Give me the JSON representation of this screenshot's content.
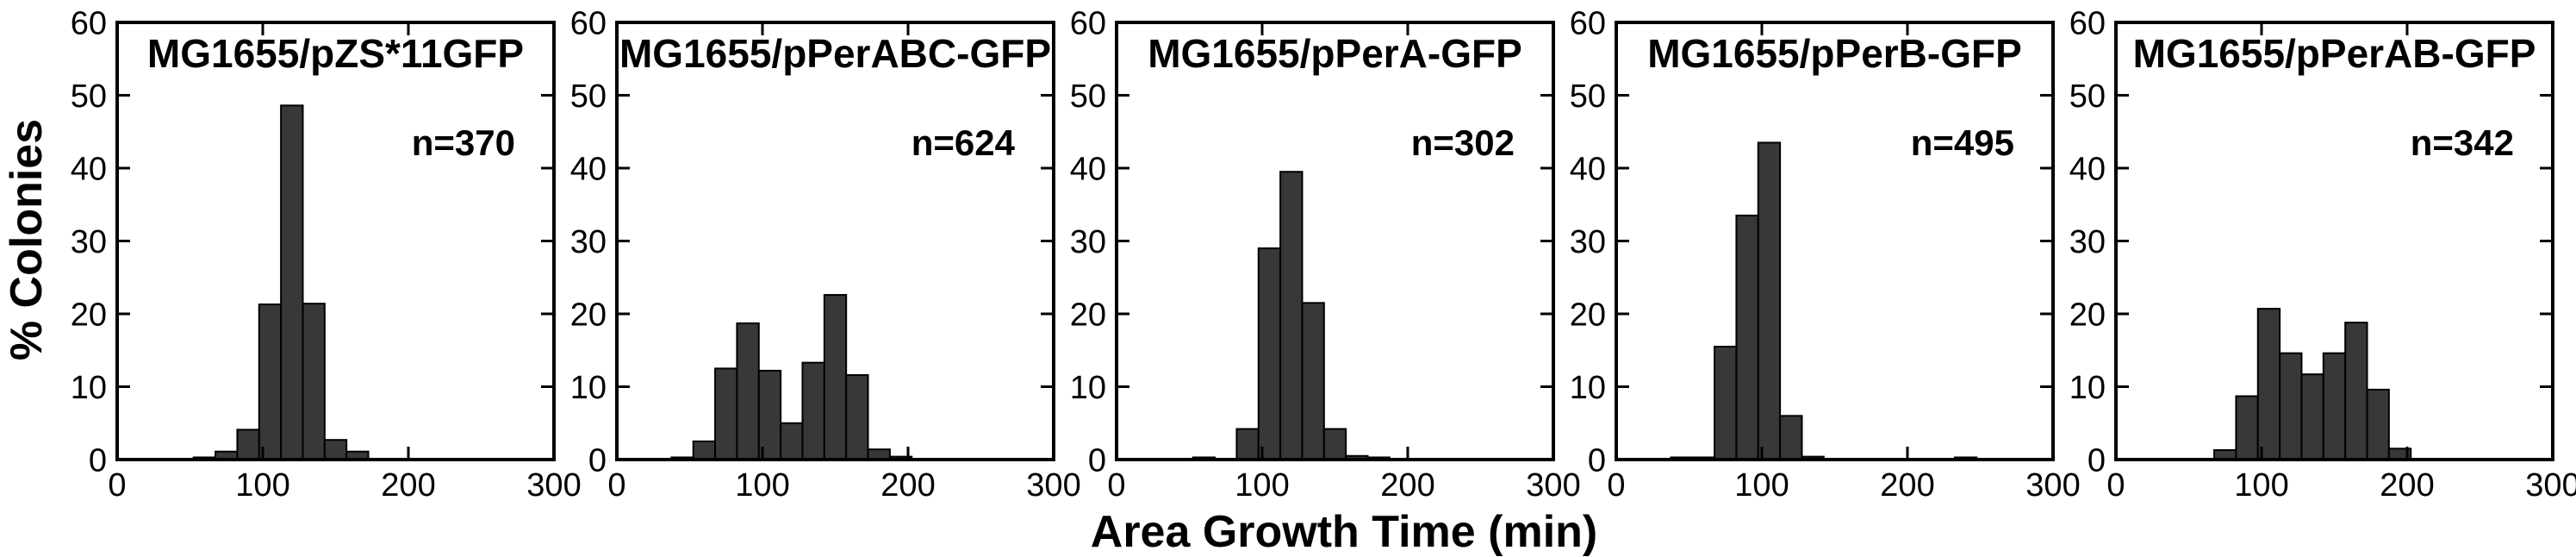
{
  "figure": {
    "y_axis_label": "% Colonies",
    "x_axis_label": "Area Growth Time (min)",
    "background_color": "#ffffff",
    "axis_color": "#000000",
    "bar_fill_color": "#383838",
    "bar_edge_color": "#000000"
  },
  "chart_data": [
    {
      "type": "bar",
      "title": "MG1655/pZS*11GFP",
      "n_label": "n=370",
      "n_value": 370,
      "xlabel": "Area Growth Time (min)",
      "ylabel": "% Colonies",
      "xlim": [
        0,
        300
      ],
      "ylim": [
        0,
        60
      ],
      "xticks": [
        0,
        100,
        200,
        300
      ],
      "yticks": [
        0,
        10,
        20,
        30,
        40,
        50,
        60
      ],
      "bin_width": 15,
      "bin_centers": [
        60,
        75,
        90,
        105,
        120,
        135,
        150,
        165
      ],
      "values": [
        0.3,
        1.1,
        4.1,
        21.3,
        48.6,
        21.4,
        2.7,
        1.1
      ]
    },
    {
      "type": "bar",
      "title": "MG1655/pPerABC-GFP",
      "n_label": "n=624",
      "n_value": 624,
      "xlabel": "Area Growth Time (min)",
      "ylabel": "% Colonies",
      "xlim": [
        0,
        300
      ],
      "ylim": [
        0,
        60
      ],
      "xticks": [
        0,
        100,
        200,
        300
      ],
      "yticks": [
        0,
        10,
        20,
        30,
        40,
        50,
        60
      ],
      "bin_width": 15,
      "bin_centers": [
        45,
        60,
        75,
        90,
        105,
        120,
        135,
        150,
        165,
        180,
        195
      ],
      "values": [
        0.3,
        2.5,
        12.5,
        18.7,
        12.2,
        5.0,
        13.3,
        22.6,
        11.6,
        1.4,
        0.4
      ]
    },
    {
      "type": "bar",
      "title": "MG1655/pPerA-GFP",
      "n_label": "n=302",
      "n_value": 302,
      "xlabel": "Area Growth Time (min)",
      "ylabel": "% Colonies",
      "xlim": [
        0,
        300
      ],
      "ylim": [
        0,
        60
      ],
      "xticks": [
        0,
        100,
        200,
        300
      ],
      "yticks": [
        0,
        10,
        20,
        30,
        40,
        50,
        60
      ],
      "bin_width": 15,
      "bin_centers": [
        60,
        75,
        90,
        105,
        120,
        135,
        150,
        165,
        180
      ],
      "values": [
        0.3,
        0,
        4.2,
        29.0,
        39.5,
        21.5,
        4.2,
        0.5,
        0.3
      ]
    },
    {
      "type": "bar",
      "title": "MG1655/pPerB-GFP",
      "n_label": "n=495",
      "n_value": 495,
      "xlabel": "Area Growth Time (min)",
      "ylabel": "% Colonies",
      "xlim": [
        0,
        300
      ],
      "ylim": [
        0,
        60
      ],
      "xticks": [
        0,
        100,
        200,
        300
      ],
      "yticks": [
        0,
        10,
        20,
        30,
        40,
        50,
        60
      ],
      "bin_width": 15,
      "bin_centers": [
        45,
        60,
        75,
        90,
        105,
        120,
        135,
        240
      ],
      "values": [
        0.3,
        0.3,
        15.5,
        33.5,
        43.5,
        6.0,
        0.4,
        0.3
      ]
    },
    {
      "type": "bar",
      "title": "MG1655/pPerAB-GFP",
      "n_label": "n=342",
      "n_value": 342,
      "xlabel": "Area Growth Time (min)",
      "ylabel": "% Colonies",
      "xlim": [
        0,
        300
      ],
      "ylim": [
        0,
        60
      ],
      "xticks": [
        0,
        100,
        200,
        300
      ],
      "yticks": [
        0,
        10,
        20,
        30,
        40,
        50,
        60
      ],
      "bin_width": 15,
      "bin_centers": [
        75,
        90,
        105,
        120,
        135,
        150,
        165,
        180,
        195
      ],
      "values": [
        1.3,
        8.7,
        20.7,
        14.6,
        11.7,
        14.6,
        18.8,
        9.6,
        1.5
      ]
    }
  ]
}
